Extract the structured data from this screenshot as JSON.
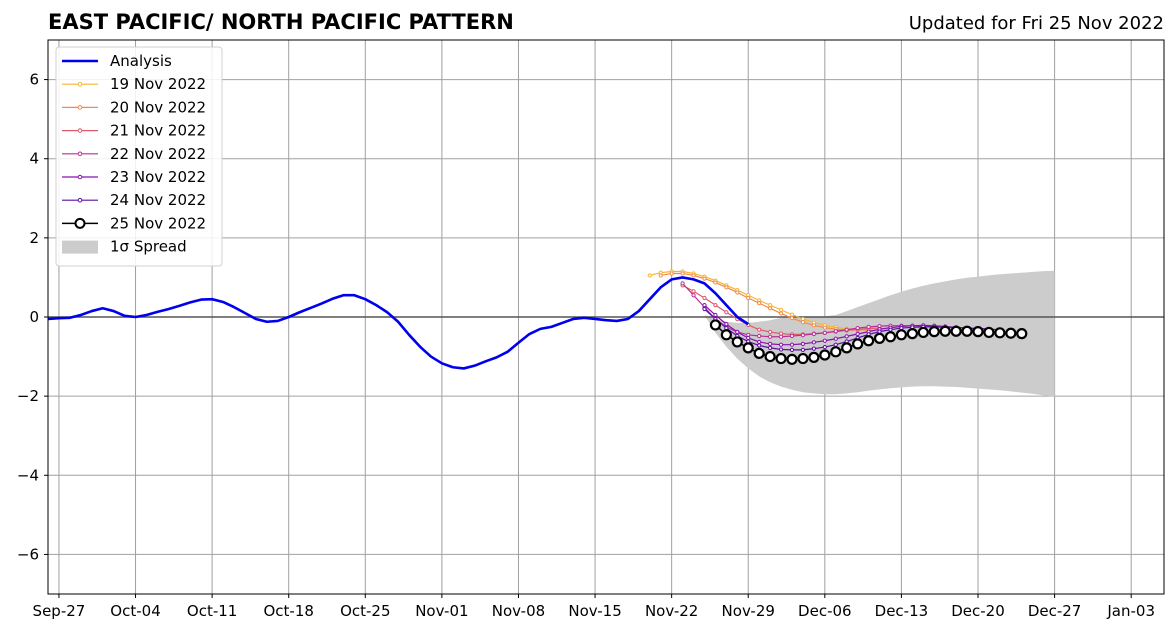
{
  "chart_data": {
    "type": "line",
    "title": "EAST PACIFIC/ NORTH PACIFIC PATTERN",
    "subtitle": "Updated for Fri 25 Nov 2022",
    "xlabel": "",
    "ylabel": "",
    "ylim": [
      -7,
      7
    ],
    "xlim": [
      "2022-09-26",
      "2023-01-06"
    ],
    "grid": true,
    "legend_position": "top-left",
    "x_ticks": [
      {
        "date": "2022-09-27",
        "label": "Sep-27"
      },
      {
        "date": "2022-10-04",
        "label": "Oct-04"
      },
      {
        "date": "2022-10-11",
        "label": "Oct-11"
      },
      {
        "date": "2022-10-18",
        "label": "Oct-18"
      },
      {
        "date": "2022-10-25",
        "label": "Oct-25"
      },
      {
        "date": "2022-11-01",
        "label": "Nov-01"
      },
      {
        "date": "2022-11-08",
        "label": "Nov-08"
      },
      {
        "date": "2022-11-15",
        "label": "Nov-15"
      },
      {
        "date": "2022-11-22",
        "label": "Nov-22"
      },
      {
        "date": "2022-11-29",
        "label": "Nov-29"
      },
      {
        "date": "2022-12-06",
        "label": "Dec-06"
      },
      {
        "date": "2022-12-13",
        "label": "Dec-13"
      },
      {
        "date": "2022-12-20",
        "label": "Dec-20"
      },
      {
        "date": "2022-12-27",
        "label": "Dec-27"
      },
      {
        "date": "2023-01-03",
        "label": "Jan-03"
      }
    ],
    "y_ticks": [
      {
        "value": -6,
        "label": "−6"
      },
      {
        "value": -4,
        "label": "−4"
      },
      {
        "value": -2,
        "label": "−2"
      },
      {
        "value": 0,
        "label": "0"
      },
      {
        "value": 2,
        "label": "2"
      },
      {
        "value": 4,
        "label": "4"
      },
      {
        "value": 6,
        "label": "6"
      }
    ],
    "analysis": {
      "name": "Analysis",
      "color": "#0000ee",
      "start_date": "2022-09-26",
      "values": [
        -0.05,
        -0.03,
        -0.02,
        0.05,
        0.15,
        0.22,
        0.15,
        0.03,
        0.0,
        0.05,
        0.13,
        0.2,
        0.28,
        0.37,
        0.44,
        0.45,
        0.38,
        0.25,
        0.1,
        -0.05,
        -0.12,
        -0.1,
        0.0,
        0.12,
        0.23,
        0.34,
        0.46,
        0.55,
        0.55,
        0.45,
        0.3,
        0.12,
        -0.12,
        -0.45,
        -0.75,
        -1.0,
        -1.17,
        -1.27,
        -1.3,
        -1.23,
        -1.12,
        -1.02,
        -0.88,
        -0.65,
        -0.43,
        -0.3,
        -0.25,
        -0.15,
        -0.05,
        -0.02,
        -0.05,
        -0.08,
        -0.1,
        -0.05,
        0.15,
        0.45,
        0.75,
        0.95,
        1.0,
        0.95,
        0.85,
        0.6,
        0.3,
        0.0,
        -0.18
      ]
    },
    "forecasts": [
      {
        "name": "19 Nov 2022",
        "color": "#f5b52f",
        "start_date": "2022-11-20",
        "values": [
          1.05,
          1.12,
          1.15,
          1.15,
          1.1,
          1.02,
          0.92,
          0.8,
          0.68,
          0.55,
          0.42,
          0.3,
          0.18,
          0.06,
          -0.05,
          -0.14,
          -0.21,
          -0.26,
          -0.3,
          -0.32,
          -0.33,
          -0.33
        ]
      },
      {
        "name": "20 Nov 2022",
        "color": "#f28b4b",
        "start_date": "2022-11-21",
        "values": [
          1.05,
          1.1,
          1.1,
          1.05,
          0.97,
          0.87,
          0.75,
          0.62,
          0.48,
          0.35,
          0.22,
          0.09,
          -0.03,
          -0.13,
          -0.21,
          -0.27,
          -0.31,
          -0.33,
          -0.33,
          -0.32
        ]
      },
      {
        "name": "21 Nov 2022",
        "color": "#de5a6e",
        "start_date": "2022-11-23",
        "values": [
          0.8,
          0.65,
          0.48,
          0.3,
          0.12,
          -0.05,
          -0.2,
          -0.32,
          -0.38,
          -0.42,
          -0.44,
          -0.44,
          -0.42,
          -0.4,
          -0.37,
          -0.34,
          -0.31,
          -0.29,
          -0.28
        ]
      },
      {
        "name": "22 Nov 2022",
        "color": "#b73195",
        "start_date": "2022-11-23",
        "values": [
          0.85,
          0.55,
          0.25,
          -0.05,
          -0.25,
          -0.38,
          -0.45,
          -0.48,
          -0.5,
          -0.5,
          -0.48,
          -0.46,
          -0.43,
          -0.4,
          -0.36,
          -0.32,
          -0.28,
          -0.25,
          -0.23,
          -0.22,
          -0.22,
          -0.22,
          -0.23,
          -0.24,
          -0.25,
          -0.26
        ]
      },
      {
        "name": "23 Nov 2022",
        "color": "#8b10b0",
        "start_date": "2022-11-25",
        "values": [
          0.3,
          0.05,
          -0.18,
          -0.38,
          -0.53,
          -0.63,
          -0.68,
          -0.7,
          -0.7,
          -0.68,
          -0.64,
          -0.6,
          -0.55,
          -0.49,
          -0.43,
          -0.37,
          -0.31,
          -0.27,
          -0.24,
          -0.22,
          -0.21,
          -0.22,
          -0.24,
          -0.26,
          -0.28,
          -0.29,
          -0.3
        ]
      },
      {
        "name": "24 Nov 2022",
        "color": "#5b0fa0",
        "start_date": "2022-11-25",
        "values": [
          0.2,
          -0.05,
          -0.28,
          -0.48,
          -0.62,
          -0.72,
          -0.78,
          -0.82,
          -0.83,
          -0.83,
          -0.8,
          -0.76,
          -0.7,
          -0.62,
          -0.53,
          -0.44,
          -0.37,
          -0.32,
          -0.28,
          -0.26,
          -0.25,
          -0.25,
          -0.26,
          -0.27,
          -0.28,
          -0.3,
          -0.31,
          -0.32
        ]
      },
      {
        "name": "25 Nov 2022",
        "color": "#000000",
        "start_date": "2022-11-26",
        "marker": "open-circle",
        "values": [
          -0.2,
          -0.45,
          -0.63,
          -0.78,
          -0.92,
          -1.0,
          -1.05,
          -1.07,
          -1.05,
          -1.02,
          -0.96,
          -0.88,
          -0.78,
          -0.68,
          -0.6,
          -0.54,
          -0.5,
          -0.45,
          -0.42,
          -0.39,
          -0.37,
          -0.36,
          -0.36,
          -0.36,
          -0.37,
          -0.39,
          -0.4,
          -0.41,
          -0.42
        ]
      }
    ],
    "spread": {
      "name": "1σ Spread",
      "color": "#cccccc",
      "start_date": "2022-11-25",
      "upper": [
        0.05,
        -0.05,
        -0.12,
        -0.15,
        -0.15,
        -0.12,
        -0.08,
        -0.02,
        0.02,
        0.02,
        0.02,
        0.02,
        0.05,
        0.15,
        0.25,
        0.35,
        0.45,
        0.55,
        0.64,
        0.72,
        0.79,
        0.85,
        0.9,
        0.95,
        0.99,
        1.02,
        1.05,
        1.08,
        1.1,
        1.12,
        1.14,
        1.16,
        1.17
      ],
      "lower": [
        0.05,
        -0.4,
        -0.75,
        -1.05,
        -1.3,
        -1.5,
        -1.65,
        -1.76,
        -1.84,
        -1.9,
        -1.93,
        -1.95,
        -1.95,
        -1.93,
        -1.9,
        -1.86,
        -1.83,
        -1.8,
        -1.78,
        -1.76,
        -1.75,
        -1.75,
        -1.76,
        -1.77,
        -1.79,
        -1.81,
        -1.83,
        -1.85,
        -1.88,
        -1.91,
        -1.94,
        -1.98,
        -2.02
      ]
    }
  }
}
